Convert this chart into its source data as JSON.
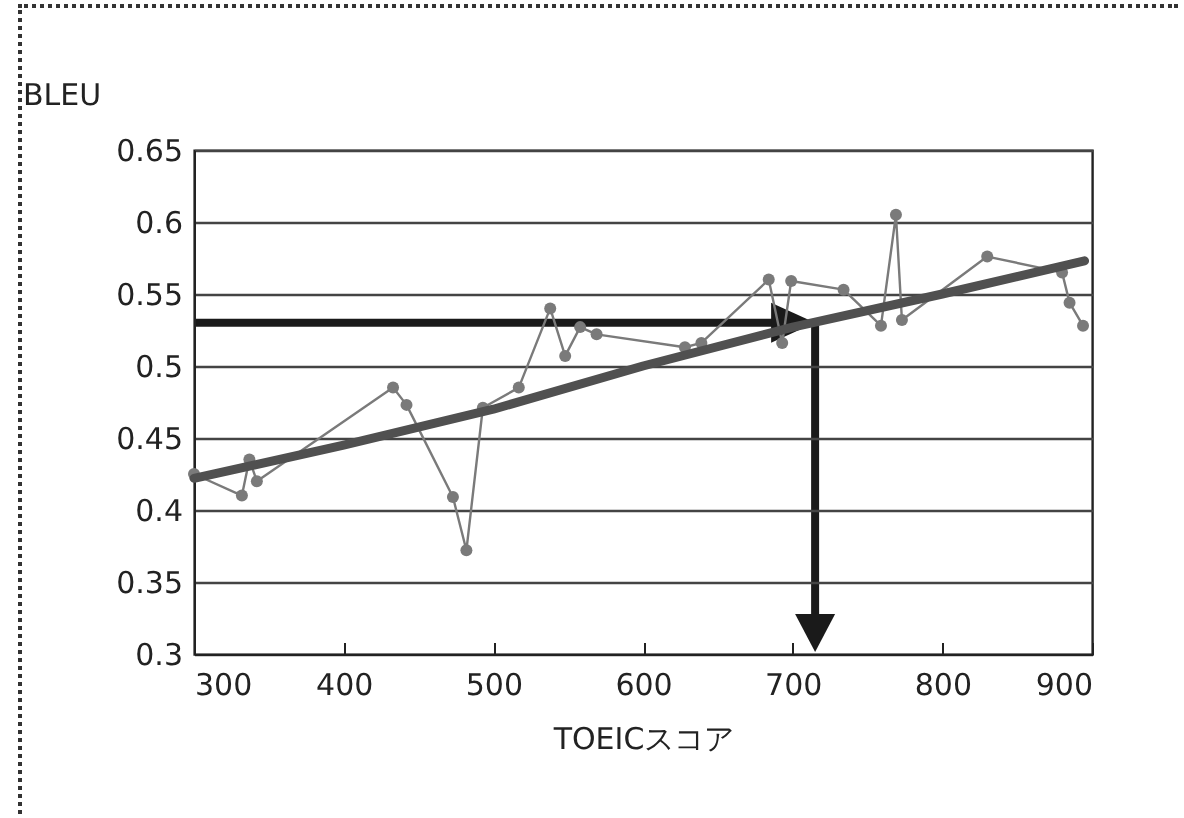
{
  "chart_data": {
    "type": "line",
    "ylabel": "BLEU",
    "xlabel": "TOEICスコア",
    "xlim": [
      300,
      900
    ],
    "xticks": [
      300,
      400,
      500,
      600,
      700,
      800,
      900
    ],
    "ylim": [
      0.3,
      0.65
    ],
    "yticks": [
      0.3,
      0.35,
      0.4,
      0.45,
      0.5,
      0.55,
      0.6,
      0.65
    ],
    "grid": "y",
    "series": [
      {
        "marker": "circle",
        "color": "#7a7a7a",
        "x": [
          300,
          332,
          337,
          342,
          433,
          442,
          473,
          482,
          493,
          517,
          538,
          548,
          558,
          569,
          628,
          639,
          684,
          693,
          699,
          734,
          759,
          769,
          773,
          830,
          880,
          885,
          894
        ],
        "values": [
          0.425,
          0.41,
          0.435,
          0.42,
          0.485,
          0.473,
          0.409,
          0.372,
          0.471,
          0.485,
          0.54,
          0.507,
          0.527,
          0.522,
          0.513,
          0.516,
          0.56,
          0.516,
          0.559,
          0.553,
          0.528,
          0.605,
          0.532,
          0.576,
          0.565,
          0.544,
          0.528
        ]
      },
      {
        "marker": "none",
        "color": "#505050",
        "x": [
          300,
          400,
          500,
          600,
          700,
          800,
          895
        ],
        "values": [
          0.422,
          0.445,
          0.47,
          0.5,
          0.527,
          0.55,
          0.573
        ]
      }
    ],
    "ref_lines": [
      {
        "axis": "y",
        "value": 0.53,
        "color": "#1a1a1a"
      },
      {
        "axis": "x",
        "value": 715,
        "color": "#1a1a1a"
      }
    ]
  }
}
